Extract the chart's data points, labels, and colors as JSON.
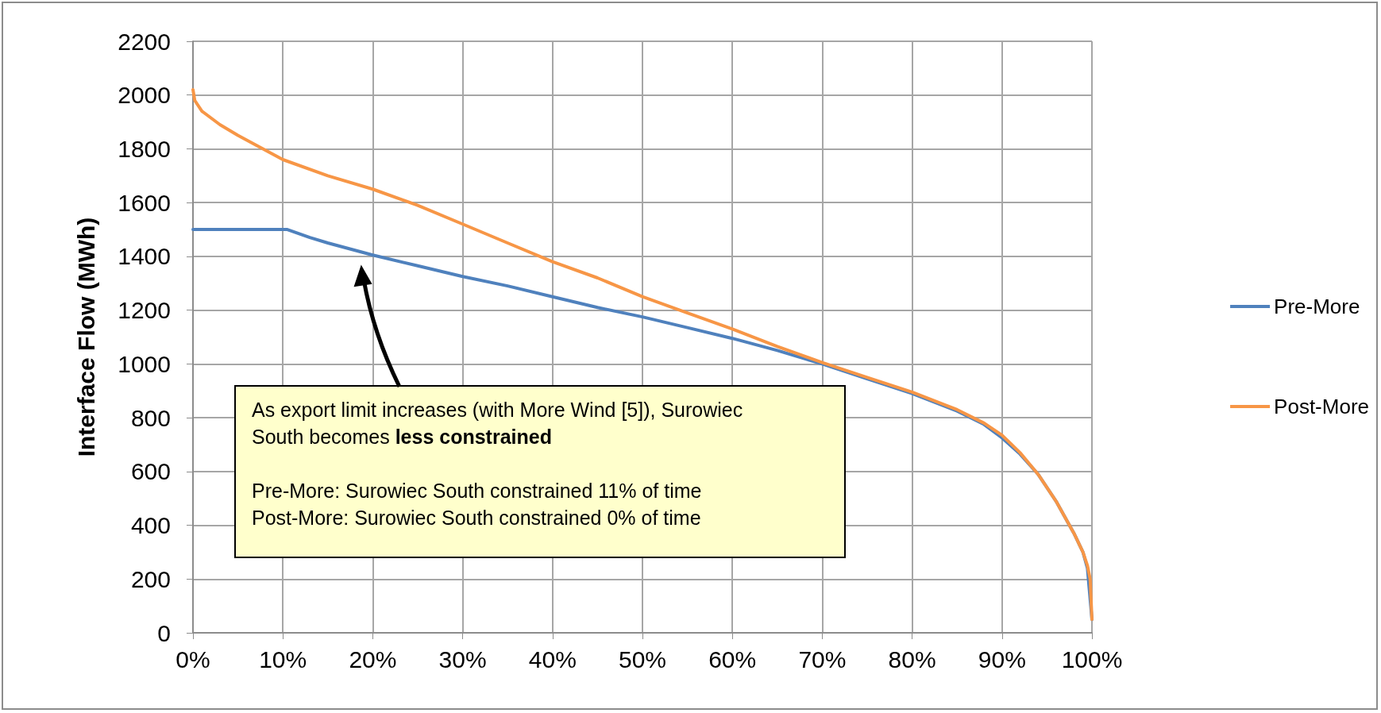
{
  "chart_data": {
    "type": "line",
    "ylabel": "Interface Flow (MWh)",
    "xlim": [
      0,
      100
    ],
    "xticks": [
      {
        "value": 0,
        "label": "0%"
      },
      {
        "value": 10,
        "label": "10%"
      },
      {
        "value": 20,
        "label": "20%"
      },
      {
        "value": 30,
        "label": "30%"
      },
      {
        "value": 40,
        "label": "40%"
      },
      {
        "value": 50,
        "label": "50%"
      },
      {
        "value": 60,
        "label": "60%"
      },
      {
        "value": 70,
        "label": "70%"
      },
      {
        "value": 80,
        "label": "80%"
      },
      {
        "value": 90,
        "label": "90%"
      },
      {
        "value": 100,
        "label": "100%"
      }
    ],
    "ylim": [
      0,
      2200
    ],
    "yticks": [
      0,
      200,
      400,
      600,
      800,
      1000,
      1200,
      1400,
      1600,
      1800,
      2000,
      2200
    ],
    "grid": true,
    "legend": "right",
    "marker": "none",
    "line_style": "solid",
    "series": [
      {
        "name": "Pre-More",
        "color": "#4f81bd",
        "x": [
          0,
          5,
          10.5,
          13,
          15,
          20,
          25,
          30,
          35,
          40,
          45,
          50,
          55,
          60,
          65,
          70,
          75,
          80,
          85,
          88,
          90,
          92,
          94,
          96,
          98,
          99,
          99.5,
          100
        ],
        "values": [
          1500,
          1500,
          1500,
          1470,
          1450,
          1405,
          1365,
          1325,
          1290,
          1250,
          1210,
          1175,
          1135,
          1095,
          1050,
          1000,
          945,
          890,
          825,
          775,
          725,
          665,
          590,
          490,
          370,
          300,
          240,
          50
        ]
      },
      {
        "name": "Post-More",
        "color": "#f79646",
        "x": [
          0,
          0.2,
          1,
          3,
          5,
          10,
          15,
          20,
          25,
          30,
          35,
          40,
          45,
          50,
          55,
          60,
          65,
          70,
          75,
          80,
          85,
          88,
          90,
          92,
          94,
          96,
          98,
          99,
          99.5,
          99.8,
          100
        ],
        "values": [
          2020,
          1980,
          1940,
          1890,
          1850,
          1760,
          1700,
          1650,
          1590,
          1520,
          1450,
          1380,
          1320,
          1250,
          1190,
          1130,
          1065,
          1005,
          950,
          895,
          830,
          780,
          735,
          670,
          590,
          490,
          370,
          300,
          250,
          200,
          50
        ]
      }
    ],
    "annotations": [
      "As export limit increases (with More Wind [5]), Surowiec South becomes",
      "less constrained",
      "Pre-More: Surowiec South constrained 11% of time",
      "Post-More: Surowiec South constrained 0% of time"
    ]
  }
}
